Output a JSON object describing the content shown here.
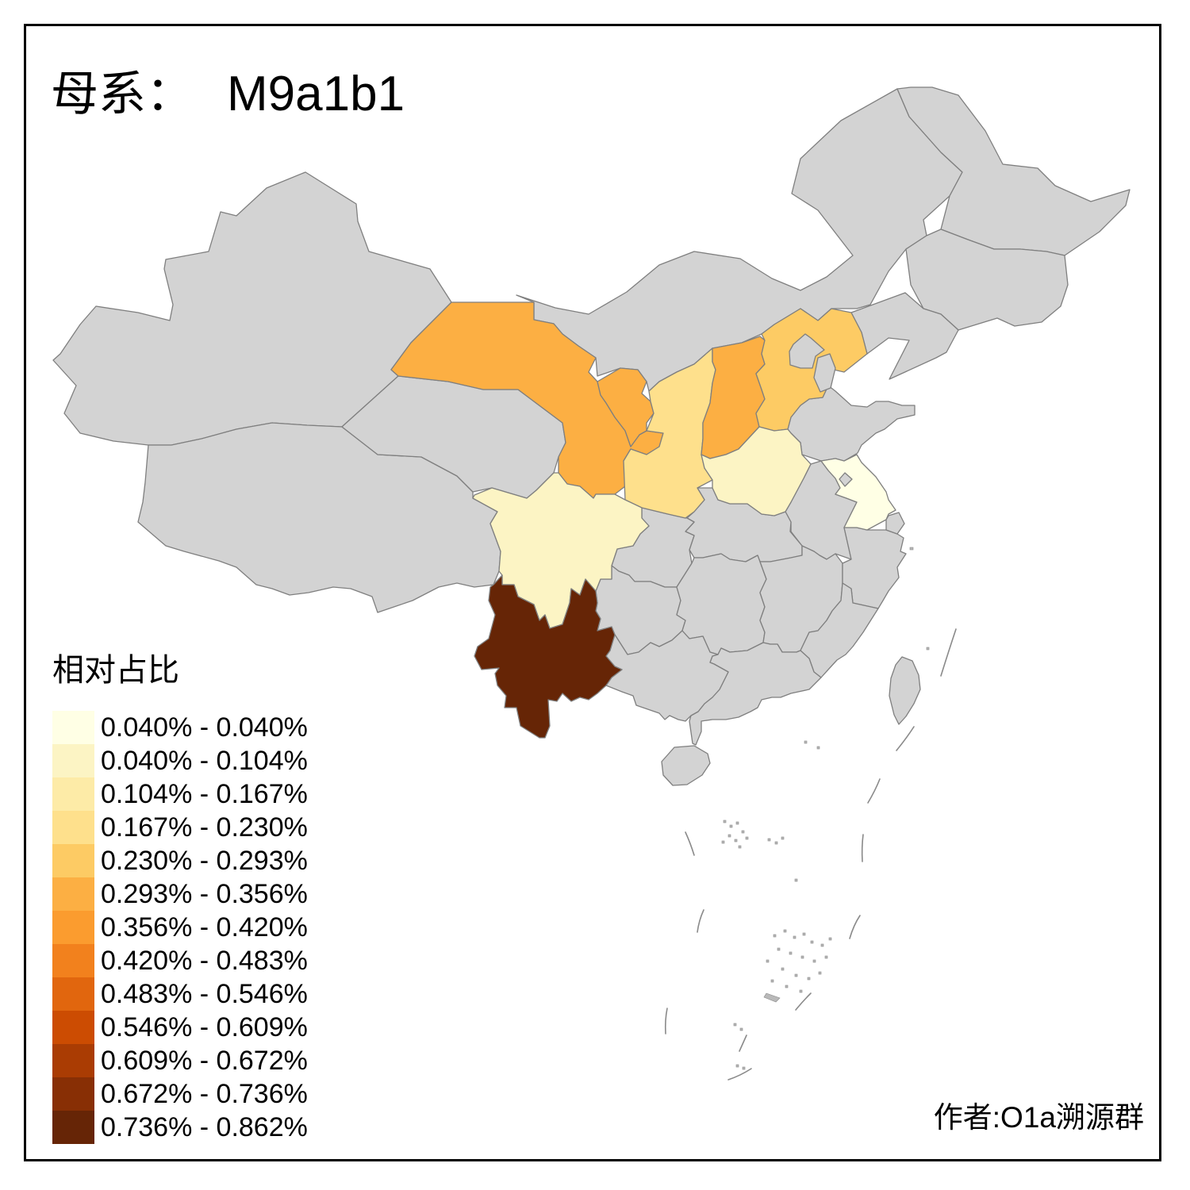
{
  "title": {
    "prefix": "母系：",
    "haplogroup": "M9a1b1"
  },
  "legend": {
    "title": "相对占比",
    "classes": [
      {
        "label": "0.040% - 0.040%",
        "color": "#FFFFE5"
      },
      {
        "label": "0.040% - 0.104%",
        "color": "#FCF4C4"
      },
      {
        "label": "0.104% - 0.167%",
        "color": "#FDEBA7"
      },
      {
        "label": "0.167% - 0.230%",
        "color": "#FEE08C"
      },
      {
        "label": "0.230% - 0.293%",
        "color": "#FDCB64"
      },
      {
        "label": "0.293% - 0.356%",
        "color": "#FCAF43"
      },
      {
        "label": "0.356% - 0.420%",
        "color": "#FB9C2F"
      },
      {
        "label": "0.420% - 0.483%",
        "color": "#F2811D"
      },
      {
        "label": "0.483% - 0.546%",
        "color": "#E1660E"
      },
      {
        "label": "0.546% - 0.609%",
        "color": "#CC4C02"
      },
      {
        "label": "0.609% - 0.672%",
        "color": "#AA3C03"
      },
      {
        "label": "0.672% - 0.736%",
        "color": "#882F05"
      },
      {
        "label": "0.736% - 0.862%",
        "color": "#662506"
      }
    ]
  },
  "attribution": {
    "text": "作者:O1a溯源群"
  },
  "map": {
    "sea_color": "#FFFFFF",
    "land_color": "#D3D3D3",
    "boundary_color": "#7F7F7F",
    "frame_color": "#000000",
    "region_classes": {
      "jiangsu": 1,
      "sichuan": 2,
      "henan": 2,
      "shaanxi": 4,
      "hebei": 5,
      "gansu": 6,
      "ningxia": 6,
      "shanxi": 6,
      "yunnan": 13
    }
  }
}
